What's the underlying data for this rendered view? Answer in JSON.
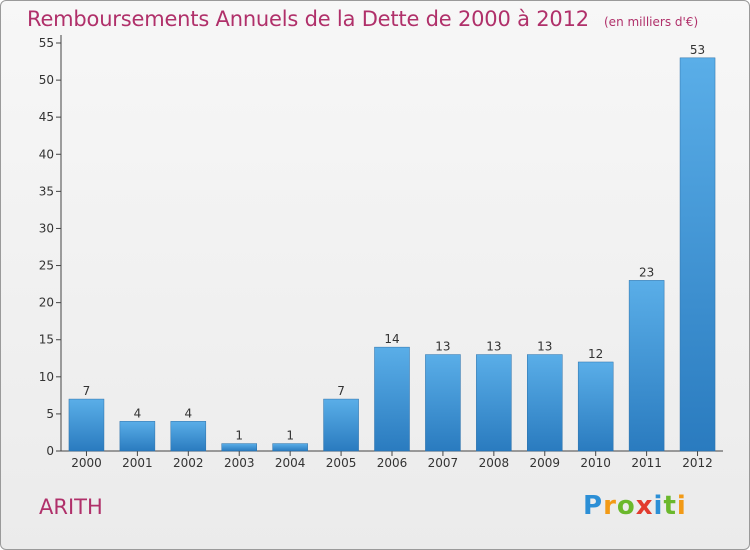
{
  "header": {
    "title": "Remboursements Annuels de la Dette de 2000 à 2012",
    "subtitle": "(en milliers d'€)"
  },
  "commune_name": "ARITH",
  "logo_text": "Proxiti",
  "colors": {
    "title": "#b0306a",
    "bar_light": "#5aaee8",
    "bar_dark": "#2a7bbf",
    "axis": "#333333"
  },
  "chart_data": {
    "type": "bar",
    "categories": [
      "2000",
      "2001",
      "2002",
      "2003",
      "2004",
      "2005",
      "2006",
      "2007",
      "2008",
      "2009",
      "2010",
      "2011",
      "2012"
    ],
    "values": [
      7,
      4,
      4,
      1,
      1,
      7,
      14,
      13,
      13,
      13,
      12,
      23,
      53
    ],
    "title": "Remboursements Annuels de la Dette de 2000 à 2012",
    "subtitle": "(en milliers d'€)",
    "xlabel": "",
    "ylabel": "",
    "ylim": [
      0,
      55
    ],
    "yticks": [
      0,
      5,
      10,
      15,
      20,
      25,
      30,
      35,
      40,
      45,
      50,
      55
    ],
    "grid": false,
    "data_labels": true
  }
}
